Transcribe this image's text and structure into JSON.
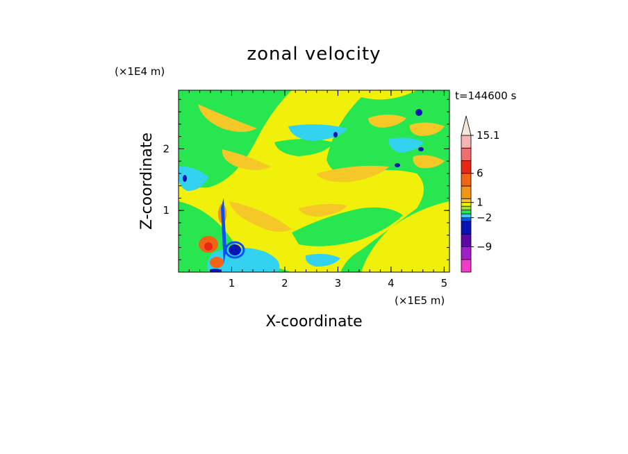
{
  "chart_data": {
    "type": "heatmap",
    "title": "zonal velocity",
    "xlabel": "X-coordinate",
    "ylabel": "Z-coordinate",
    "x_unit": "(×1E5 m)",
    "y_unit": "(×1E4 m)",
    "time_label": "t=144600 s",
    "xlim": [
      0,
      5.1
    ],
    "ylim": [
      0,
      2.95
    ],
    "x_ticks": [
      1,
      2,
      3,
      4,
      5
    ],
    "y_ticks": [
      1,
      2
    ],
    "colorbar": {
      "labels": [
        {
          "text": "15.1",
          "level": 15.1
        },
        {
          "text": "6",
          "level": 6
        },
        {
          "text": "1",
          "level": 1
        },
        {
          "text": "−2",
          "level": -2
        },
        {
          "text": "−9",
          "level": -9
        }
      ],
      "segments": [
        {
          "color": "#f03cc8",
          "min": -15,
          "max": -12
        },
        {
          "color": "#a020c8",
          "min": -12,
          "max": -9
        },
        {
          "color": "#5a0aa0",
          "min": -9,
          "max": -6
        },
        {
          "color": "#0a14b4",
          "min": -6,
          "max": -3
        },
        {
          "color": "#0a50f0",
          "min": -3,
          "max": -2
        },
        {
          "color": "#32d2f0",
          "min": -2,
          "max": -1
        },
        {
          "color": "#28e650",
          "min": -1,
          "max": 0
        },
        {
          "color": "#96e628",
          "min": 0,
          "max": 0.5
        },
        {
          "color": "#f0f00a",
          "min": 0.5,
          "max": 1
        },
        {
          "color": "#f5c828",
          "min": 1,
          "max": 2
        },
        {
          "color": "#f09614",
          "min": 2,
          "max": 3
        },
        {
          "color": "#f06414",
          "min": 3,
          "max": 6
        },
        {
          "color": "#e62814",
          "min": 6,
          "max": 9
        },
        {
          "color": "#f06e6e",
          "min": 9,
          "max": 12
        },
        {
          "color": "#f5b4b4",
          "min": 12,
          "max": 15.1
        }
      ],
      "extend_max_color": "#f5e6dc"
    }
  }
}
